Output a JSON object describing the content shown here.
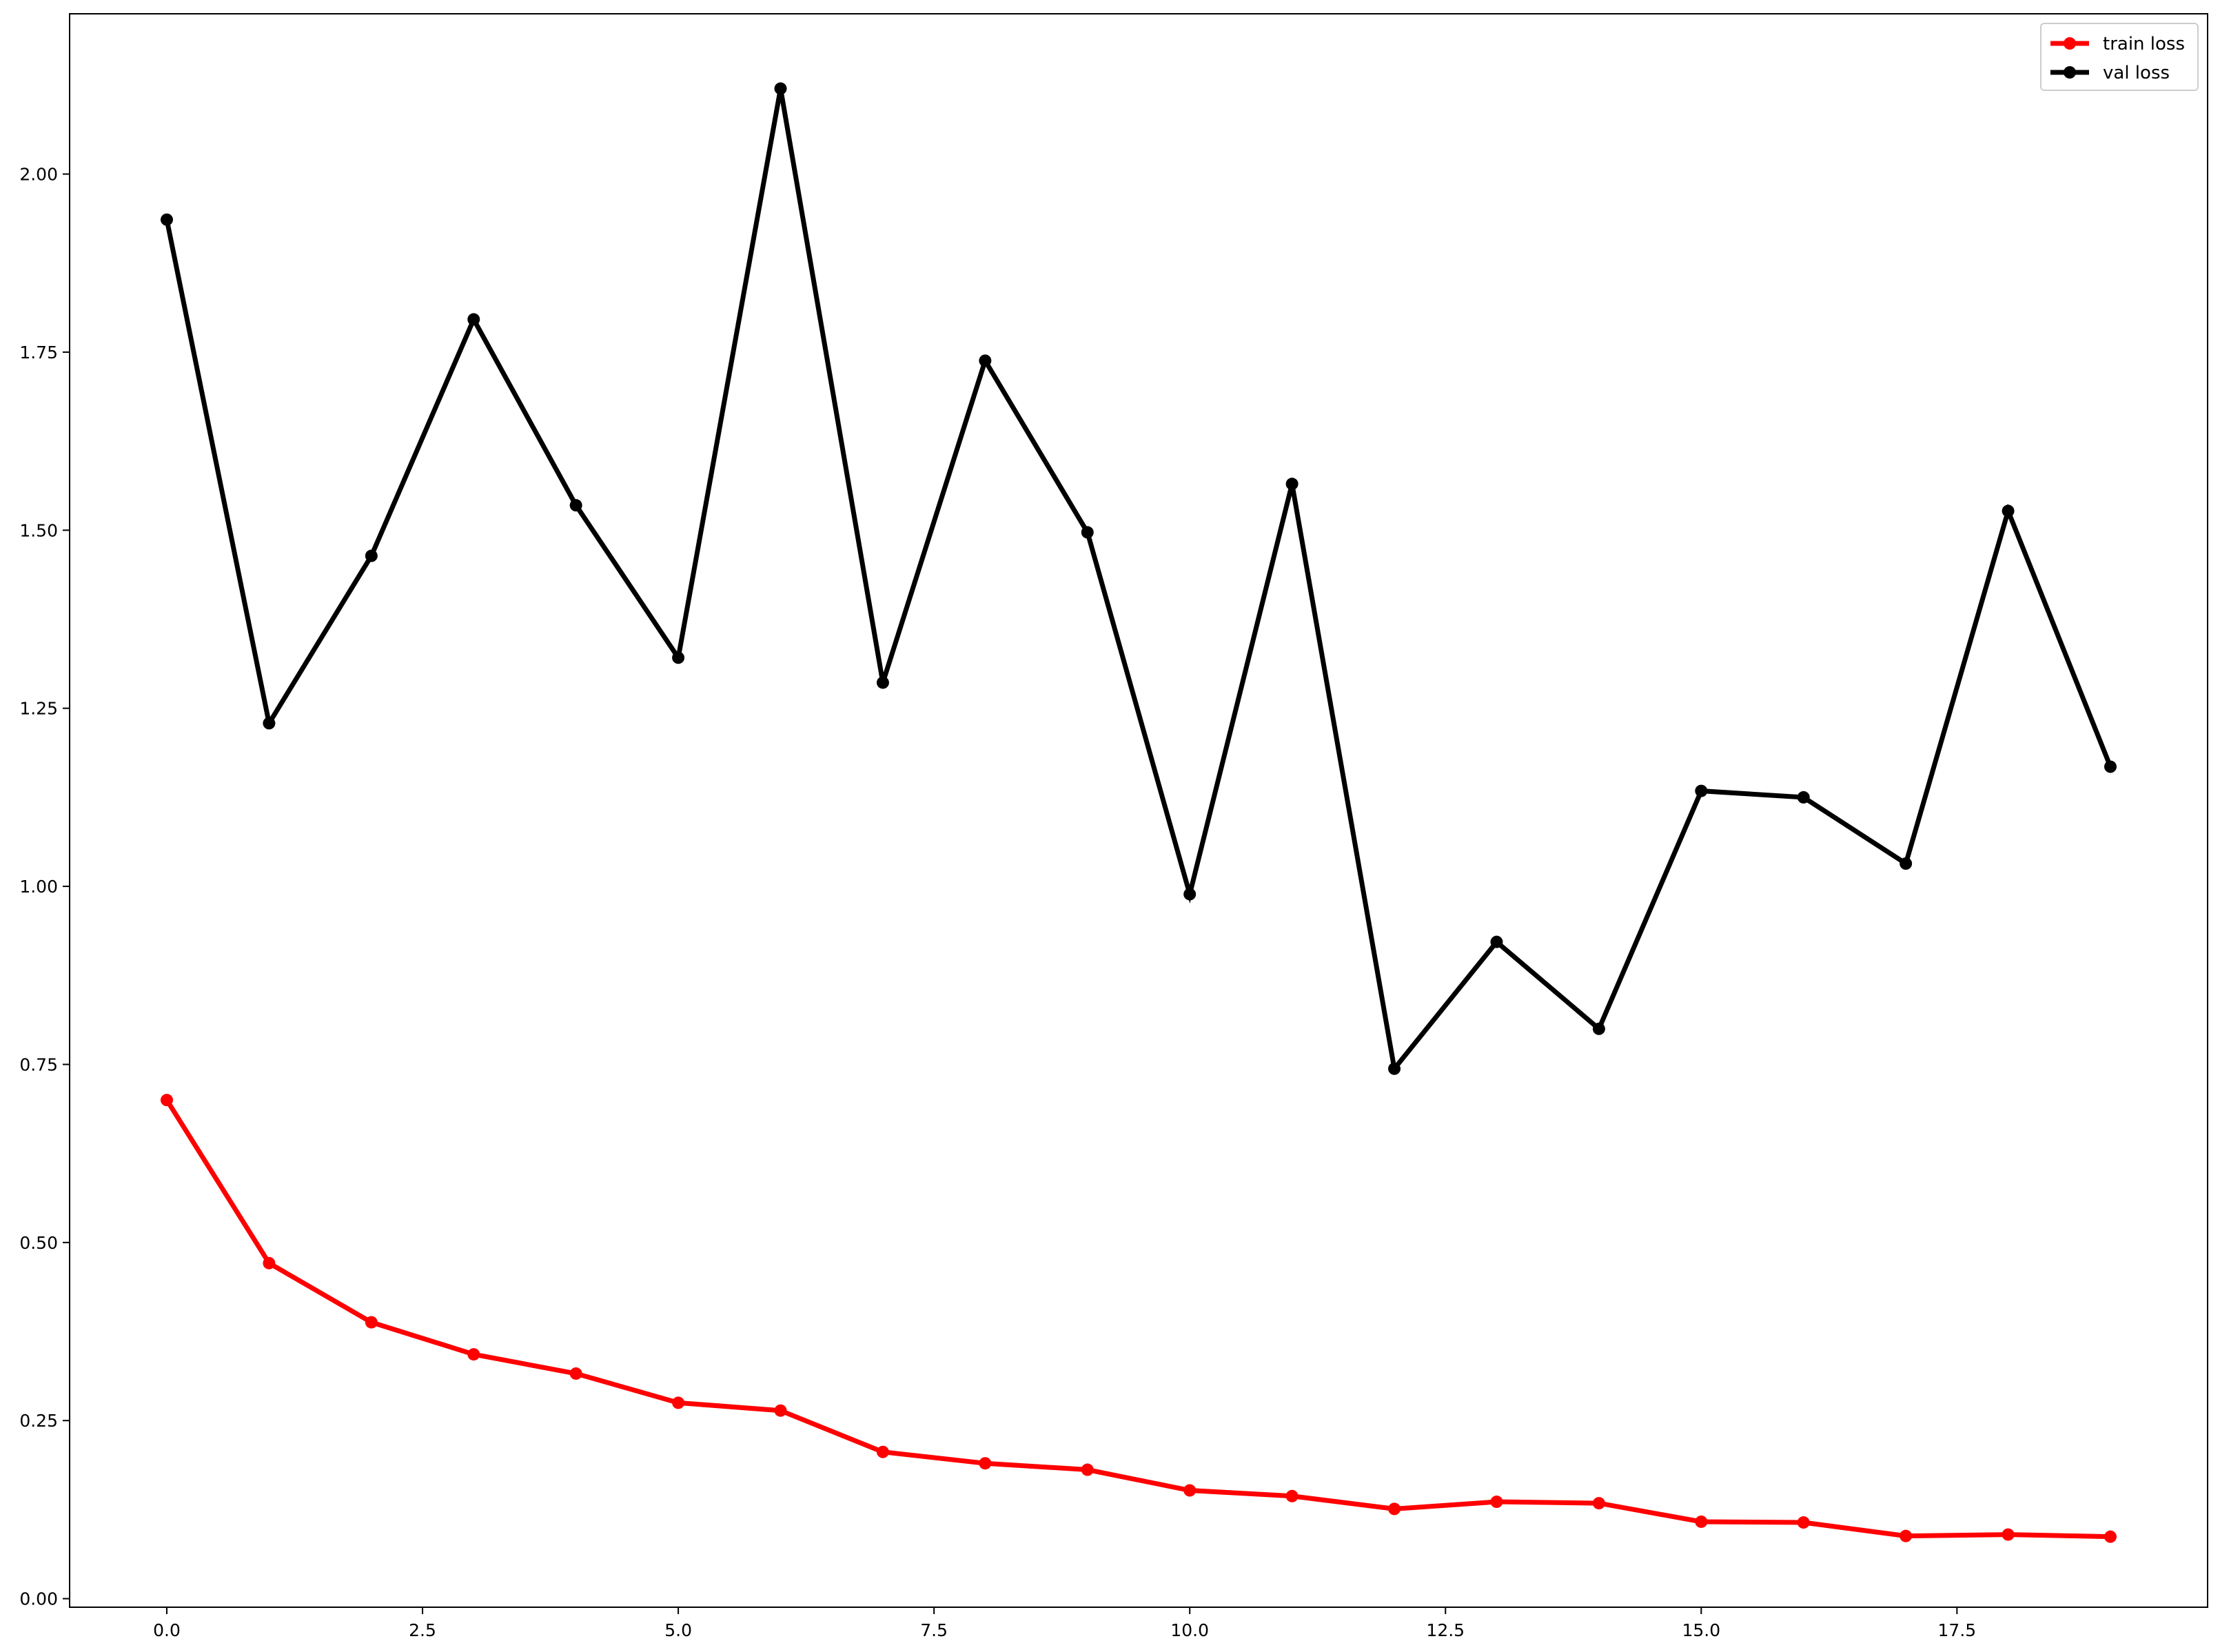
{
  "chart_data": {
    "type": "line",
    "title": "",
    "xlabel": "",
    "ylabel": "",
    "xlim": [
      -0.95,
      19.95
    ],
    "ylim": [
      -0.012,
      2.225
    ],
    "grid": false,
    "legend_position": "top-right",
    "x": [
      0,
      1,
      2,
      3,
      4,
      5,
      6,
      7,
      8,
      9,
      10,
      11,
      12,
      13,
      14,
      15,
      16,
      17,
      18,
      19
    ],
    "xticks": [
      0.0,
      2.5,
      5.0,
      7.5,
      10.0,
      12.5,
      15.0,
      17.5
    ],
    "xtick_labels": [
      "0.0",
      "2.5",
      "5.0",
      "7.5",
      "10.0",
      "12.5",
      "15.0",
      "17.5"
    ],
    "yticks": [
      0.0,
      0.25,
      0.5,
      0.75,
      1.0,
      1.25,
      1.5,
      1.75,
      2.0
    ],
    "ytick_labels": [
      "0.00",
      "0.25",
      "0.50",
      "0.75",
      "1.00",
      "1.25",
      "1.50",
      "1.75",
      "2.00"
    ],
    "series": [
      {
        "name": "train loss",
        "color": "#ff0000",
        "marker": "circle",
        "values": [
          0.7,
          0.471,
          0.388,
          0.343,
          0.316,
          0.275,
          0.264,
          0.206,
          0.19,
          0.181,
          0.152,
          0.144,
          0.126,
          0.136,
          0.134,
          0.108,
          0.107,
          0.088,
          0.09,
          0.087
        ]
      },
      {
        "name": "val loss",
        "color": "#000000",
        "marker": "circle",
        "values": [
          1.936,
          1.229,
          1.464,
          1.796,
          1.535,
          1.321,
          2.12,
          1.286,
          1.738,
          1.497,
          0.989,
          1.565,
          0.744,
          0.922,
          0.8,
          1.134,
          1.125,
          1.032,
          1.527,
          1.168
        ]
      }
    ]
  }
}
